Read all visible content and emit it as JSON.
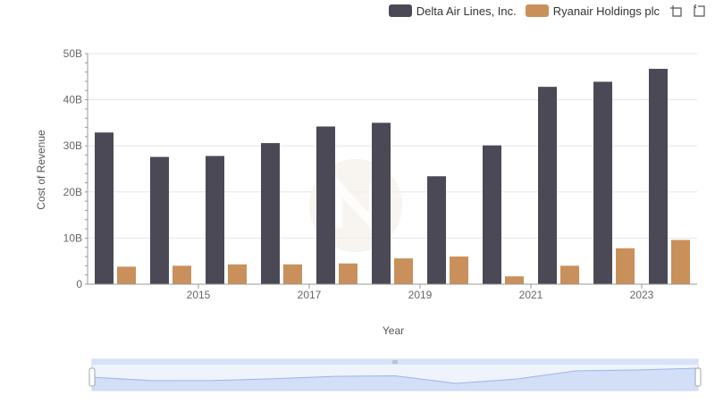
{
  "legend": [
    {
      "name": "Delta Air Lines, Inc.",
      "color": "#4a4955"
    },
    {
      "name": "Ryanair Holdings plc",
      "color": "#c9905c"
    }
  ],
  "toolbar": {
    "icons": [
      "zoom-icon",
      "restore-icon"
    ]
  },
  "chart_data": {
    "type": "bar",
    "categories": [
      "2014",
      "2015",
      "2016",
      "2017",
      "2018",
      "2019",
      "2020",
      "2021",
      "2022",
      "2023",
      "2024"
    ],
    "x_tick_labels": [
      "2015",
      "2017",
      "2019",
      "2021",
      "2023"
    ],
    "series": [
      {
        "name": "Delta Air Lines, Inc.",
        "color": "#4a4955",
        "values": [
          32.9,
          27.6,
          27.8,
          30.6,
          34.2,
          35.0,
          23.4,
          30.1,
          42.8,
          43.9,
          46.7
        ]
      },
      {
        "name": "Ryanair Holdings plc",
        "color": "#c9905c",
        "values": [
          3.8,
          4.0,
          4.3,
          4.3,
          4.5,
          5.6,
          6.0,
          1.7,
          4.0,
          7.8,
          9.6
        ]
      }
    ],
    "y_ticks": [
      "0",
      "10B",
      "20B",
      "30B",
      "40B",
      "50B"
    ],
    "ylim": [
      0,
      50
    ],
    "xlabel": "Year",
    "ylabel": "Cost of Revenue",
    "grid": true,
    "legend_position": "top-right",
    "data_zoom": true
  }
}
